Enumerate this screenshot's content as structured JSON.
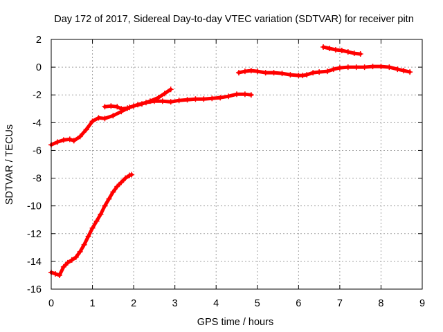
{
  "chart_data": {
    "type": "scatter",
    "title": "Day 172 of 2017, Sidereal Day-to-day VTEC variation (SDTVAR) for receiver pitn",
    "xlabel": "GPS time / hours",
    "ylabel": "SDTVAR / TECUs",
    "xlim": [
      0,
      9
    ],
    "ylim": [
      -16,
      2
    ],
    "xticks": [
      "0",
      "1",
      "2",
      "3",
      "4",
      "5",
      "6",
      "7",
      "8",
      "9"
    ],
    "yticks": [
      "-16",
      "-14",
      "-12",
      "-10",
      "-8",
      "-6",
      "-4",
      "-2",
      "0",
      "2"
    ],
    "grid": true,
    "legend": "none",
    "marker_color": "#ff0000",
    "series": [
      {
        "x": [
          0.0,
          0.15,
          0.3,
          0.45,
          0.55,
          0.7,
          0.85,
          1.0,
          1.15,
          1.3,
          1.5,
          1.7,
          1.9,
          2.1,
          2.3,
          2.5,
          2.7,
          2.9,
          3.1,
          3.3,
          3.5,
          3.7,
          3.9,
          4.1,
          4.3,
          4.5,
          4.7,
          4.85
        ],
        "y": [
          -5.6,
          -5.4,
          -5.25,
          -5.2,
          -5.3,
          -5.0,
          -4.5,
          -3.9,
          -3.65,
          -3.7,
          -3.5,
          -3.2,
          -2.9,
          -2.7,
          -2.55,
          -2.45,
          -2.45,
          -2.5,
          -2.4,
          -2.35,
          -2.3,
          -2.3,
          -2.25,
          -2.2,
          -2.1,
          -1.95,
          -1.95,
          -2.0
        ]
      },
      {
        "x": [
          1.3,
          1.45,
          1.6,
          1.7,
          1.85,
          2.0,
          2.2,
          2.4,
          2.6,
          2.75,
          2.9
        ],
        "y": [
          -2.85,
          -2.8,
          -2.85,
          -3.0,
          -2.95,
          -2.8,
          -2.65,
          -2.45,
          -2.2,
          -1.9,
          -1.6
        ]
      },
      {
        "x": [
          0.0,
          0.1,
          0.2,
          0.3,
          0.4,
          0.5,
          0.6,
          0.7,
          0.8,
          0.9,
          1.0,
          1.1,
          1.2,
          1.3,
          1.4,
          1.5,
          1.6,
          1.7,
          1.8,
          1.9,
          1.95
        ],
        "y": [
          -14.8,
          -14.9,
          -15.0,
          -14.4,
          -14.1,
          -13.9,
          -13.7,
          -13.3,
          -12.8,
          -12.2,
          -11.6,
          -11.1,
          -10.6,
          -10.0,
          -9.5,
          -9.0,
          -8.6,
          -8.3,
          -8.0,
          -7.8,
          -7.75
        ]
      },
      {
        "x": [
          4.55,
          4.7,
          4.85,
          5.0,
          5.2,
          5.4,
          5.6,
          5.8,
          6.0,
          6.1,
          6.2,
          6.35,
          6.5,
          6.7,
          6.85,
          7.0,
          7.2,
          7.4,
          7.6,
          7.8,
          8.0,
          8.2,
          8.4,
          8.55,
          8.7
        ],
        "y": [
          -0.4,
          -0.3,
          -0.25,
          -0.3,
          -0.4,
          -0.4,
          -0.45,
          -0.55,
          -0.6,
          -0.6,
          -0.55,
          -0.4,
          -0.35,
          -0.3,
          -0.15,
          -0.05,
          0.0,
          0.0,
          0.0,
          0.05,
          0.05,
          0.0,
          -0.15,
          -0.25,
          -0.35
        ]
      },
      {
        "x": [
          6.6,
          6.75,
          6.9,
          7.05,
          7.2,
          7.35,
          7.5
        ],
        "y": [
          1.45,
          1.35,
          1.25,
          1.2,
          1.1,
          1.0,
          0.95
        ]
      }
    ]
  }
}
